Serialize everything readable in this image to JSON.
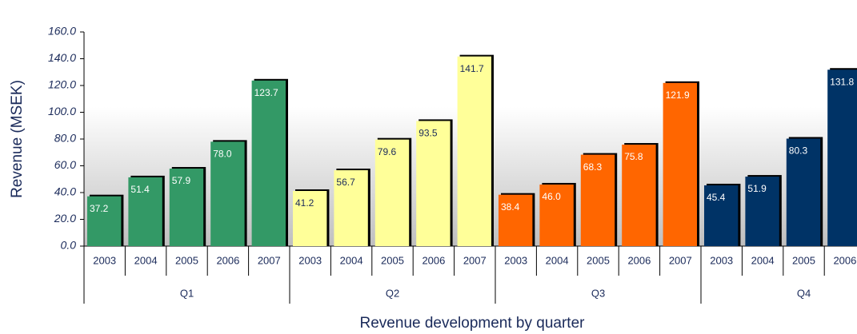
{
  "chart_data": {
    "type": "bar",
    "y_axis_label": "Revenue (MSEK)",
    "x_axis_label": "Revenue development by quarter",
    "ylim": [
      0,
      160
    ],
    "yticks": [
      {
        "value": 0,
        "label": "0.0"
      },
      {
        "value": 20,
        "label": "20.0"
      },
      {
        "value": 40,
        "label": "40.0"
      },
      {
        "value": 60,
        "label": "60.0"
      },
      {
        "value": 80,
        "label": "80.0"
      },
      {
        "value": 100,
        "label": "100.0"
      },
      {
        "value": 120,
        "label": "120.0"
      },
      {
        "value": 140,
        "label": "140.0"
      },
      {
        "value": 160,
        "label": "160.0"
      }
    ],
    "groups": [
      {
        "name": "Q1",
        "color": "#339966",
        "label_color": "#ffffff",
        "categories": [
          "2003",
          "2004",
          "2005",
          "2006",
          "2007"
        ],
        "values": [
          37.2,
          51.4,
          57.9,
          78,
          123.7
        ],
        "value_labels": [
          "37.2",
          "51.4",
          "57.9",
          "78.0",
          "123.7"
        ]
      },
      {
        "name": "Q2",
        "color": "#ffff99",
        "label_color": "#1a2a5a",
        "categories": [
          "2003",
          "2004",
          "2005",
          "2006",
          "2007"
        ],
        "values": [
          41.2,
          56.7,
          79.6,
          93.5,
          141.7
        ],
        "value_labels": [
          "41.2",
          "56.7",
          "79.6",
          "93.5",
          "141.7"
        ]
      },
      {
        "name": "Q3",
        "color": "#ff6600",
        "label_color": "#ffffff",
        "categories": [
          "2003",
          "2004",
          "2005",
          "2006",
          "2007"
        ],
        "values": [
          38.4,
          46,
          68.3,
          75.8,
          121.9
        ],
        "value_labels": [
          "38.4",
          "46.0",
          "68.3",
          "75.8",
          "121.9"
        ]
      },
      {
        "name": "Q4",
        "color": "#003366",
        "label_color": "#ffffff",
        "categories": [
          "2003",
          "2004",
          "2005",
          "2006"
        ],
        "values": [
          45.4,
          51.9,
          80.3,
          131.8
        ],
        "value_labels": [
          "45.4",
          "51.9",
          "80.3",
          "131.8"
        ]
      }
    ]
  }
}
